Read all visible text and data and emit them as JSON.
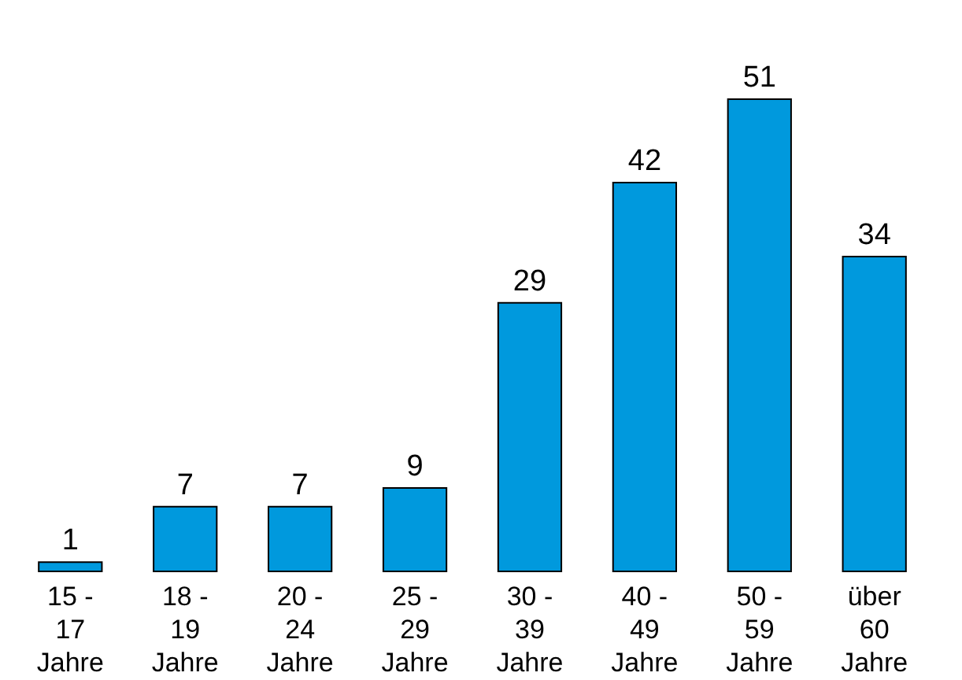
{
  "chart_data": {
    "type": "bar",
    "categories": [
      "15 -\n17\nJahre",
      "18 -\n19\nJahre",
      "20 -\n24\nJahre",
      "25 -\n29\nJahre",
      "30 -\n39\nJahre",
      "40 -\n49\nJahre",
      "50 -\n59\nJahre",
      "über\n60\nJahre"
    ],
    "values": [
      1,
      7,
      7,
      9,
      29,
      42,
      51,
      34
    ],
    "color": "#0099dd",
    "data_labels": true
  }
}
